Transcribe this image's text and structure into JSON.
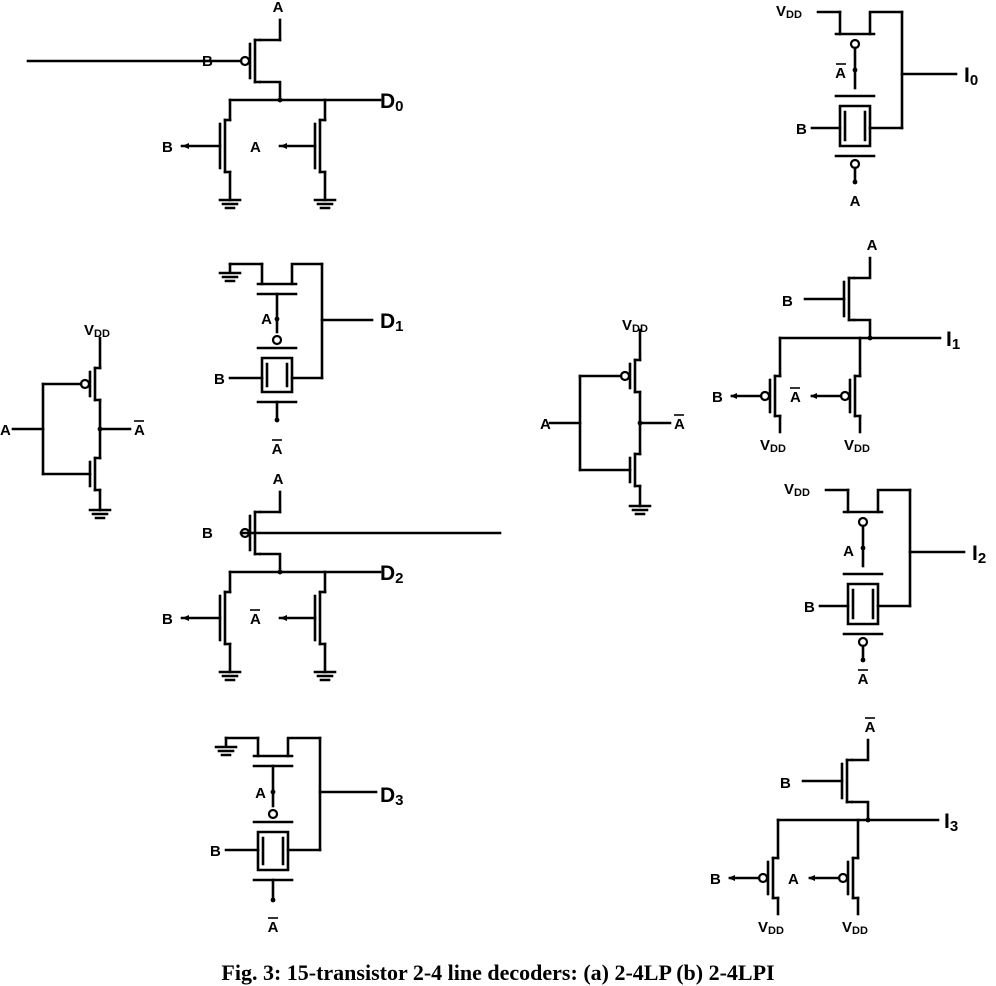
{
  "caption": "Fig. 3: 15-transistor 2-4 line decoders: (a) 2-4LP (b) 2-4LPI",
  "labels": {
    "a": "A",
    "b": "B",
    "vdd_main": "V",
    "vdd_sub": "DD"
  },
  "left": {
    "outputs": [
      {
        "main": "D",
        "sub": "0"
      },
      {
        "main": "D",
        "sub": "1"
      },
      {
        "main": "D",
        "sub": "2"
      },
      {
        "main": "D",
        "sub": "3"
      }
    ]
  },
  "right": {
    "outputs": [
      {
        "main": "I",
        "sub": "0"
      },
      {
        "main": "I",
        "sub": "1"
      },
      {
        "main": "I",
        "sub": "2"
      },
      {
        "main": "I",
        "sub": "3"
      }
    ]
  }
}
